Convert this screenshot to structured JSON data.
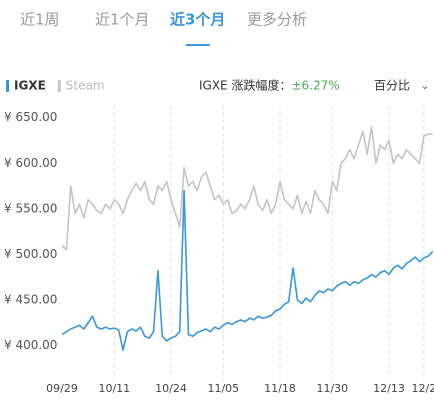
{
  "tabs": [
    "近1周",
    "近1个月",
    "近3个月",
    "更多分析"
  ],
  "active_tab": 2,
  "change_label": "IGXE 涨跌幅度：",
  "change_value": "±6.27%",
  "mode": "百分比",
  "chart_data": {
    "type": "line",
    "categories": [
      "09/29",
      null,
      null,
      null,
      null,
      null,
      null,
      null,
      null,
      null,
      null,
      null,
      "10/11",
      null,
      null,
      null,
      null,
      null,
      null,
      null,
      null,
      null,
      null,
      null,
      null,
      "10/24",
      null,
      null,
      null,
      null,
      null,
      null,
      null,
      null,
      null,
      null,
      null,
      "11/05",
      null,
      null,
      null,
      null,
      null,
      null,
      null,
      null,
      null,
      null,
      null,
      null,
      "11/18",
      null,
      null,
      null,
      null,
      null,
      null,
      null,
      null,
      null,
      null,
      null,
      "11/30",
      null,
      null,
      null,
      null,
      null,
      null,
      null,
      null,
      null,
      null,
      null,
      null,
      "12/13",
      null,
      null,
      null,
      null,
      null,
      null,
      null,
      "12/2",
      null,
      null
    ],
    "series": [
      {
        "name": "IGXE",
        "color": "#3a96dd",
        "values": [
          412,
          415,
          418,
          420,
          422,
          418,
          425,
          432,
          420,
          418,
          420,
          418,
          419,
          417,
          395,
          415,
          418,
          416,
          420,
          410,
          408,
          415,
          482,
          410,
          405,
          408,
          410,
          415,
          570,
          412,
          410,
          414,
          416,
          418,
          415,
          420,
          418,
          422,
          425,
          423,
          426,
          428,
          426,
          430,
          428,
          432,
          430,
          431,
          433,
          438,
          440,
          445,
          448,
          485,
          450,
          446,
          452,
          448,
          455,
          460,
          458,
          462,
          460,
          465,
          468,
          470,
          466,
          470,
          468,
          472,
          474,
          478,
          475,
          480,
          482,
          478,
          485,
          488,
          484,
          490,
          493,
          497,
          492,
          496,
          498,
          503
        ]
      },
      {
        "name": "Steam",
        "color": "#c4c4c4",
        "values": [
          510,
          505,
          575,
          545,
          555,
          540,
          560,
          555,
          548,
          545,
          555,
          550,
          560,
          555,
          545,
          560,
          570,
          578,
          570,
          580,
          560,
          555,
          575,
          570,
          580,
          560,
          545,
          530,
          595,
          575,
          580,
          570,
          585,
          590,
          575,
          560,
          565,
          555,
          560,
          545,
          548,
          555,
          550,
          560,
          575,
          555,
          548,
          560,
          545,
          555,
          580,
          560,
          555,
          550,
          565,
          545,
          558,
          545,
          570,
          560,
          555,
          545,
          580,
          570,
          600,
          605,
          615,
          605,
          620,
          635,
          610,
          640,
          600,
          620,
          615,
          625,
          600,
          610,
          605,
          615,
          610,
          605,
          600,
          630,
          632,
          632
        ]
      }
    ],
    "ylim": [
      362,
      664
    ],
    "yticks": [
      {
        "value": 400,
        "label": "¥ 400.00"
      },
      {
        "value": 450,
        "label": "¥ 450.00"
      },
      {
        "value": 500,
        "label": "¥ 500.00"
      },
      {
        "value": 550,
        "label": "¥ 550.00"
      },
      {
        "value": 600,
        "label": "¥ 600.00"
      },
      {
        "value": 650,
        "label": "¥ 650.00"
      }
    ],
    "xgrid": true
  }
}
